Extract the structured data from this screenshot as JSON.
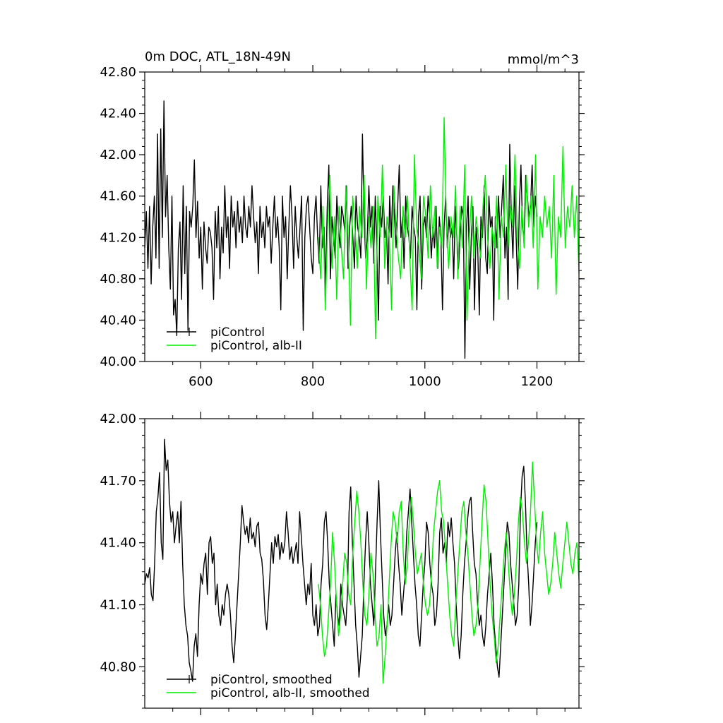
{
  "colors": {
    "piControl": "#000000",
    "albII": "#00ee00",
    "axis": "#000000"
  },
  "chart_data": [
    {
      "type": "line",
      "title": "0m DOC, ATL_18N-49N",
      "unit_label": "mmol/m^3",
      "xlabel": "",
      "ylabel": "",
      "xlim": [
        500,
        1275
      ],
      "ylim": [
        40.0,
        42.8
      ],
      "y_ticks": [
        "40.00",
        "40.40",
        "40.80",
        "41.20",
        "41.60",
        "42.00",
        "42.40",
        "42.80"
      ],
      "x_ticks": [
        "600",
        "800",
        "1000",
        "1200"
      ],
      "legend": {
        "placement": "bottom-left",
        "entries": [
          "piControl",
          "piControl, alb-II"
        ]
      },
      "series": [
        {
          "name": "piControl",
          "x_start": 500,
          "x_end": 1200,
          "color": "#000000",
          "values": [
            41.1,
            41.45,
            40.9,
            41.5,
            40.75,
            41.3,
            41.6,
            41.0,
            42.2,
            40.9,
            42.25,
            41.2,
            42.52,
            41.4,
            41.8,
            41.1,
            40.7,
            41.6,
            40.45,
            40.6,
            40.25,
            41.1,
            41.35,
            40.6,
            41.7,
            40.85,
            41.5,
            40.3,
            41.45,
            41.3,
            41.5,
            41.95,
            41.2,
            41.55,
            41.0,
            41.3,
            40.7,
            41.35,
            41.1,
            40.95,
            41.3,
            41.25,
            41.1,
            40.6,
            41.45,
            41.1,
            41.5,
            40.8,
            41.3,
            41.05,
            41.7,
            41.2,
            41.4,
            40.9,
            41.6,
            41.3,
            41.45,
            41.1,
            41.55,
            41.25,
            41.4,
            41.15,
            41.6,
            41.3,
            41.2,
            41.5,
            41.3,
            41.7,
            41.4,
            41.15,
            41.35,
            40.85,
            41.5,
            41.2,
            41.35,
            41.1,
            41.5,
            41.3,
            41.4,
            40.95,
            41.3,
            41.6,
            41.2,
            41.4,
            41.1,
            40.5,
            41.6,
            41.2,
            41.4,
            40.8,
            41.3,
            41.7,
            41.4,
            40.9,
            41.5,
            41.2,
            41.0,
            41.3,
            41.6,
            40.3,
            41.2,
            41.5,
            41.6,
            41.3,
            41.0,
            40.85,
            41.4,
            41.6,
            41.2,
            40.95,
            41.7,
            41.1,
            41.3,
            40.7,
            41.5,
            41.9,
            40.8,
            41.4,
            41.2,
            41.0,
            41.6,
            41.3,
            41.1,
            41.5,
            41.4,
            41.25,
            41.7,
            40.9,
            41.3,
            41.5,
            41.2,
            40.9,
            41.6,
            41.3,
            41.2,
            41.0,
            42.2,
            41.4,
            41.0,
            41.2,
            41.7,
            41.3,
            41.5,
            40.95,
            41.6,
            41.1,
            40.4,
            41.5,
            41.3,
            41.6,
            41.2,
            41.3,
            40.75,
            41.6,
            41.2,
            41.7,
            41.4,
            41.1,
            41.5,
            41.9,
            41.2,
            41.4,
            40.9,
            41.6,
            41.3,
            41.2,
            41.0,
            41.5,
            41.3,
            41.2,
            40.5,
            41.4,
            41.6,
            40.7,
            41.3,
            41.4,
            41.2,
            41.6,
            41.4,
            41.0,
            41.3,
            41.1,
            41.5,
            40.9,
            41.4,
            41.2,
            40.5,
            41.3,
            41.6,
            41.1,
            41.4,
            41.2,
            41.3,
            40.8,
            41.5,
            41.2,
            40.9,
            41.2,
            41.5,
            41.4,
            40.03,
            41.3,
            41.6,
            40.7,
            41.2,
            41.5,
            40.5,
            41.3,
            41.1,
            40.45,
            41.4,
            41.2,
            41.7,
            41.0,
            40.85,
            41.6,
            41.3,
            41.4,
            40.4,
            41.4,
            41.1,
            41.6,
            41.2,
            41.5,
            41.8,
            41.0,
            41.3,
            40.6,
            42.1,
            41.4,
            41.0,
            41.7,
            41.2,
            40.7,
            41.5,
            41.9,
            41.3,
            41.2,
            41.8,
            41.6,
            41.4,
            41.5,
            41.9,
            41.3,
            41.6,
            41.4
          ]
        },
        {
          "name": "piControl, alb-II",
          "x_start": 810,
          "x_end": 1275,
          "color": "#00ee00",
          "values": [
            41.2,
            40.8,
            41.5,
            40.5,
            41.3,
            41.8,
            40.9,
            41.4,
            40.6,
            41.5,
            41.1,
            40.8,
            41.7,
            41.2,
            40.35,
            41.6,
            41.3,
            40.9,
            41.5,
            41.2,
            41.8,
            40.7,
            41.4,
            41.1,
            41.5,
            40.22,
            41.6,
            41.2,
            41.9,
            40.9,
            41.4,
            41.2,
            40.5,
            41.7,
            41.3,
            41.0,
            40.8,
            41.5,
            41.2,
            41.6,
            41.0,
            40.5,
            42.0,
            41.3,
            41.1,
            40.8,
            41.6,
            41.4,
            41.0,
            41.7,
            41.2,
            41.5,
            40.9,
            41.3,
            41.1,
            42.36,
            41.3,
            40.9,
            41.4,
            41.2,
            41.7,
            40.8,
            41.5,
            41.1,
            41.9,
            40.4,
            41.2,
            41.6,
            41.0,
            41.4,
            41.2,
            41.0,
            41.5,
            41.8,
            41.2,
            40.9,
            41.3,
            41.1,
            41.6,
            40.6,
            41.4,
            41.2,
            41.9,
            41.1,
            41.5,
            41.3,
            42.0,
            41.2,
            40.9,
            41.5,
            41.1,
            41.8,
            41.3,
            41.6,
            41.1,
            42.0,
            40.7,
            41.4,
            41.2,
            41.6,
            41.3,
            41.5,
            41.0,
            41.8,
            40.65,
            41.4,
            41.2,
            42.08,
            41.1,
            41.5,
            41.3,
            41.7,
            41.2,
            41.6,
            40.85
          ]
        }
      ]
    },
    {
      "type": "line",
      "title": "",
      "xlabel": "",
      "ylabel": "",
      "xlim": [
        500,
        1275
      ],
      "ylim": [
        40.6,
        42.0
      ],
      "y_ticks": [
        "40.80",
        "41.10",
        "41.40",
        "41.70",
        "42.00"
      ],
      "legend": {
        "placement": "bottom-left",
        "entries": [
          "piControl, smoothed",
          "piControl, alb-II, smoothed"
        ]
      },
      "series": [
        {
          "name": "piControl, smoothed",
          "x_start": 500,
          "x_end": 1200,
          "color": "#000000",
          "values": [
            41.2,
            41.25,
            41.23,
            41.28,
            41.15,
            41.12,
            41.3,
            41.55,
            41.62,
            41.74,
            41.4,
            41.32,
            41.9,
            41.75,
            41.8,
            41.6,
            41.5,
            41.55,
            41.4,
            41.48,
            41.55,
            41.4,
            41.6,
            41.3,
            41.1,
            41.0,
            40.95,
            40.82,
            40.78,
            40.73,
            40.9,
            40.96,
            40.85,
            41.1,
            41.25,
            41.2,
            41.3,
            41.35,
            41.15,
            41.4,
            41.43,
            41.3,
            41.35,
            41.1,
            41.2,
            41.05,
            41.0,
            41.1,
            41.05,
            41.15,
            41.2,
            41.15,
            41.05,
            40.9,
            40.82,
            40.95,
            41.1,
            41.25,
            41.4,
            41.58,
            41.5,
            41.44,
            41.48,
            41.4,
            41.52,
            41.42,
            41.45,
            41.38,
            41.48,
            41.5,
            41.35,
            41.32,
            41.22,
            41.05,
            40.98,
            41.1,
            41.25,
            41.4,
            41.3,
            41.43,
            41.38,
            41.44,
            41.32,
            41.4,
            41.35,
            41.4,
            41.55,
            41.45,
            41.32,
            41.38,
            41.3,
            41.35,
            41.4,
            41.3,
            41.55,
            41.43,
            41.3,
            41.2,
            41.1,
            41.2,
            41.15,
            41.3,
            41.05,
            41.0,
            41.1,
            40.95,
            41.0,
            41.2,
            41.3,
            41.5,
            41.55,
            41.4,
            41.2,
            41.1,
            41.0,
            40.9,
            41.15,
            41.05,
            41.0,
            41.2,
            41.1,
            41.05,
            41.0,
            41.15,
            41.55,
            41.67,
            41.4,
            41.2,
            41.0,
            40.9,
            40.75,
            40.85,
            40.95,
            41.2,
            41.4,
            41.55,
            41.4,
            41.2,
            41.1,
            41.0,
            41.25,
            41.5,
            41.7,
            41.45,
            41.25,
            41.05,
            40.95,
            41.0,
            41.1,
            41.0,
            41.05,
            41.2,
            41.35,
            41.45,
            41.3,
            41.2,
            41.05,
            41.15,
            41.25,
            41.45,
            41.55,
            41.66,
            41.5,
            41.35,
            41.2,
            41.1,
            40.95,
            40.9,
            41.05,
            41.2,
            41.3,
            41.5,
            41.45,
            41.3,
            41.2,
            41.15,
            41.0,
            41.05,
            41.2,
            41.45,
            41.52,
            41.35,
            41.4,
            41.3,
            41.5,
            41.43,
            41.52,
            41.4,
            41.3,
            41.1,
            40.95,
            40.84,
            40.95,
            41.15,
            41.3,
            41.4,
            41.52,
            41.6,
            41.62,
            41.45,
            41.3,
            41.25,
            41.1,
            41.0,
            41.05,
            40.95,
            40.9,
            41.0,
            41.15,
            41.25,
            41.35,
            41.2,
            41.0,
            40.9,
            40.8,
            40.75,
            40.9,
            41.05,
            41.2,
            41.35,
            41.5,
            41.45,
            41.3,
            41.2,
            41.1,
            41.0,
            41.05,
            41.2,
            41.55,
            41.72,
            41.77,
            41.6,
            41.35,
            41.2,
            41.0,
            41.1,
            41.25,
            41.4,
            41.5
          ]
        },
        {
          "name": "piControl, alb-II, smoothed",
          "x_start": 810,
          "x_end": 1275,
          "color": "#00ee00",
          "values": [
            41.2,
            41.1,
            40.95,
            40.85,
            40.9,
            41.05,
            41.2,
            41.45,
            41.3,
            41.1,
            40.95,
            41.05,
            41.2,
            41.35,
            41.3,
            41.15,
            41.1,
            41.35,
            41.5,
            41.65,
            41.55,
            41.4,
            41.2,
            41.05,
            41.0,
            41.15,
            41.35,
            41.25,
            41.05,
            40.9,
            40.95,
            41.1,
            40.72,
            40.85,
            41.0,
            41.2,
            41.4,
            41.55,
            41.5,
            41.4,
            41.55,
            41.6,
            41.35,
            41.2,
            41.3,
            41.5,
            41.62,
            41.5,
            41.35,
            41.25,
            41.3,
            41.35,
            41.2,
            41.1,
            41.05,
            41.1,
            41.25,
            41.45,
            41.55,
            41.65,
            41.7,
            41.55,
            41.5,
            41.35,
            41.2,
            41.05,
            40.95,
            40.9,
            41.1,
            41.25,
            41.4,
            41.55,
            41.6,
            41.45,
            41.35,
            41.2,
            41.05,
            40.95,
            41.0,
            41.1,
            41.3,
            41.5,
            41.68,
            41.6,
            41.4,
            41.2,
            41.05,
            40.95,
            40.82,
            40.9,
            41.05,
            41.2,
            41.35,
            41.45,
            41.3,
            41.15,
            41.05,
            41.15,
            41.3,
            41.5,
            41.62,
            41.55,
            41.4,
            41.3,
            41.4,
            41.55,
            41.79,
            41.6,
            41.4,
            41.3,
            41.45,
            41.55,
            41.35,
            41.25,
            41.15,
            41.2,
            41.3,
            41.45,
            41.35,
            41.25,
            41.18,
            41.3,
            41.4,
            41.5,
            41.4,
            41.3,
            41.25,
            41.35,
            41.4,
            41.22
          ]
        }
      ]
    }
  ]
}
